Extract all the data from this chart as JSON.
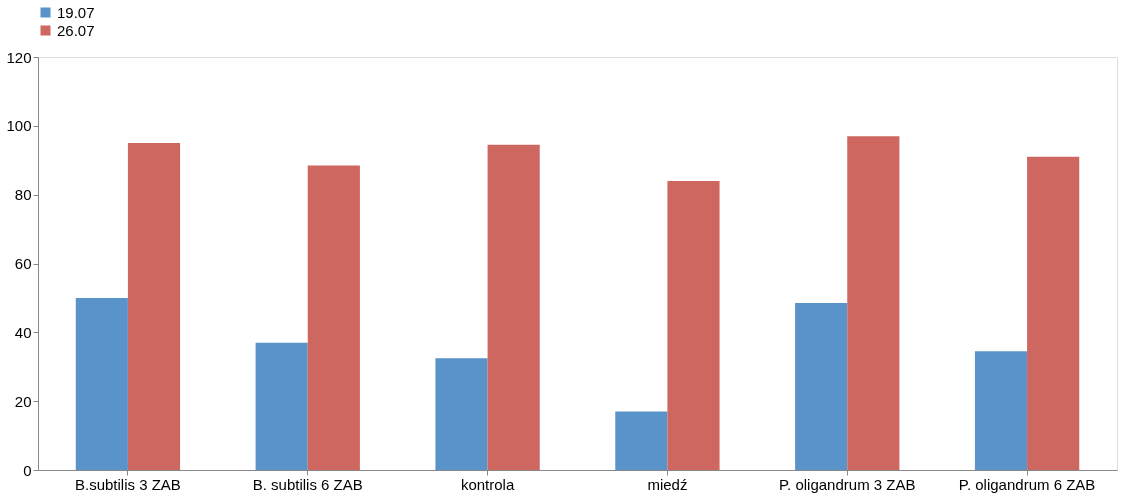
{
  "chart_data": {
    "type": "bar",
    "categories": [
      "B.subtilis 3 ZAB",
      "B. subtilis 6 ZAB",
      "kontrola",
      "miedź",
      "P. oligandrum 3 ZAB",
      "P. oligandrum 6 ZAB"
    ],
    "series": [
      {
        "name": "19.07",
        "color": "#5a93c9",
        "values": [
          50,
          37,
          32.5,
          17,
          48.5,
          34.5
        ]
      },
      {
        "name": "26.07",
        "color": "#cd6760",
        "values": [
          95,
          88.5,
          94.5,
          84,
          97,
          91
        ]
      }
    ],
    "ylim": [
      0,
      120
    ],
    "yticks": [
      0,
      20,
      40,
      60,
      80,
      100,
      120
    ],
    "grid": false,
    "legend": "top"
  }
}
